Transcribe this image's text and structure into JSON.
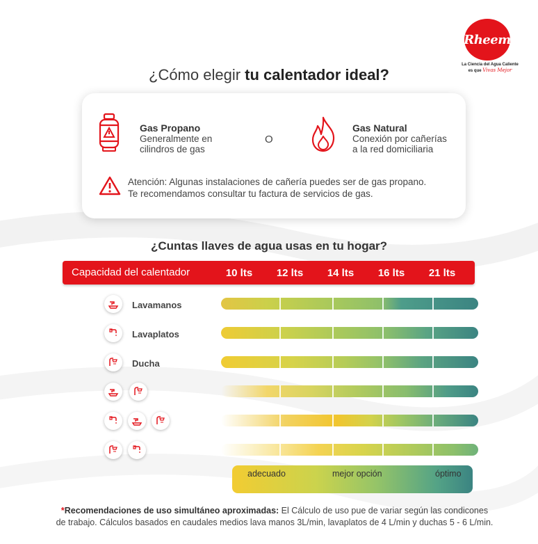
{
  "brand": {
    "logo_text": "Rheem",
    "tagline_line1": "La Ciencia del Agua Caliente",
    "tagline_prefix": "es que",
    "tagline_script": "Vivas Mejor"
  },
  "title": {
    "prefix": "¿Cómo elegir ",
    "bold": "tu calentador ideal?"
  },
  "gas_options": {
    "propano": {
      "title": "Gas Propano",
      "desc1": "Generalmente en",
      "desc2": "cilindros de gas",
      "icon": "gas-cylinder-icon"
    },
    "separator": "O",
    "natural": {
      "title": "Gas Natural",
      "desc1": "Conexión por cañerías",
      "desc2": "a la red domiciliaria",
      "icon": "flame-icon"
    },
    "warning_line1": "Atención: Algunas instalaciones de cañería puedes ser de gas propano.",
    "warning_line2": "Te recomendamos consultar tu factura de servicios de gas.",
    "warning_icon": "warning-triangle-icon"
  },
  "question": "¿Cuntas llaves de agua usas en tu hogar?",
  "capacity": {
    "label": "Capacidad del calentador",
    "columns": [
      "10 lts",
      "12 lts",
      "14 lts",
      "16 lts",
      "21 lts"
    ]
  },
  "rows": [
    {
      "label": "Lavamanos",
      "icons": [
        "lavamanos-icon"
      ]
    },
    {
      "label": "Lavaplatos",
      "icons": [
        "lavaplatos-icon"
      ]
    },
    {
      "label": "Ducha",
      "icons": [
        "ducha-icon"
      ]
    },
    {
      "label": "",
      "icons": [
        "lavamanos-icon",
        "ducha-icon"
      ]
    },
    {
      "label": "",
      "icons": [
        "lavaplatos-icon",
        "lavamanos-icon",
        "ducha-icon"
      ]
    },
    {
      "label": "",
      "icons": [
        "ducha-icon",
        "lavaplatos-icon"
      ]
    }
  ],
  "legend": {
    "left": "adecuado",
    "middle": "mejor opción",
    "right": "óptimo"
  },
  "footnote": {
    "star": "*",
    "bold": "Recomendaciones de uso simultáneo aproximadas:",
    "text1": " El Cálculo de uso pue de  variar según las condicones",
    "text2": "de trabajo. Cálculos basados en caudales medios lava manos 3L/min, lavaplatos de 4 L/min y duchas 5 - 6 L/min."
  },
  "colors": {
    "brand_red": "#e3141b",
    "adequate": "#f2cc32",
    "best": "#95c468",
    "optimal": "#3b8482"
  }
}
